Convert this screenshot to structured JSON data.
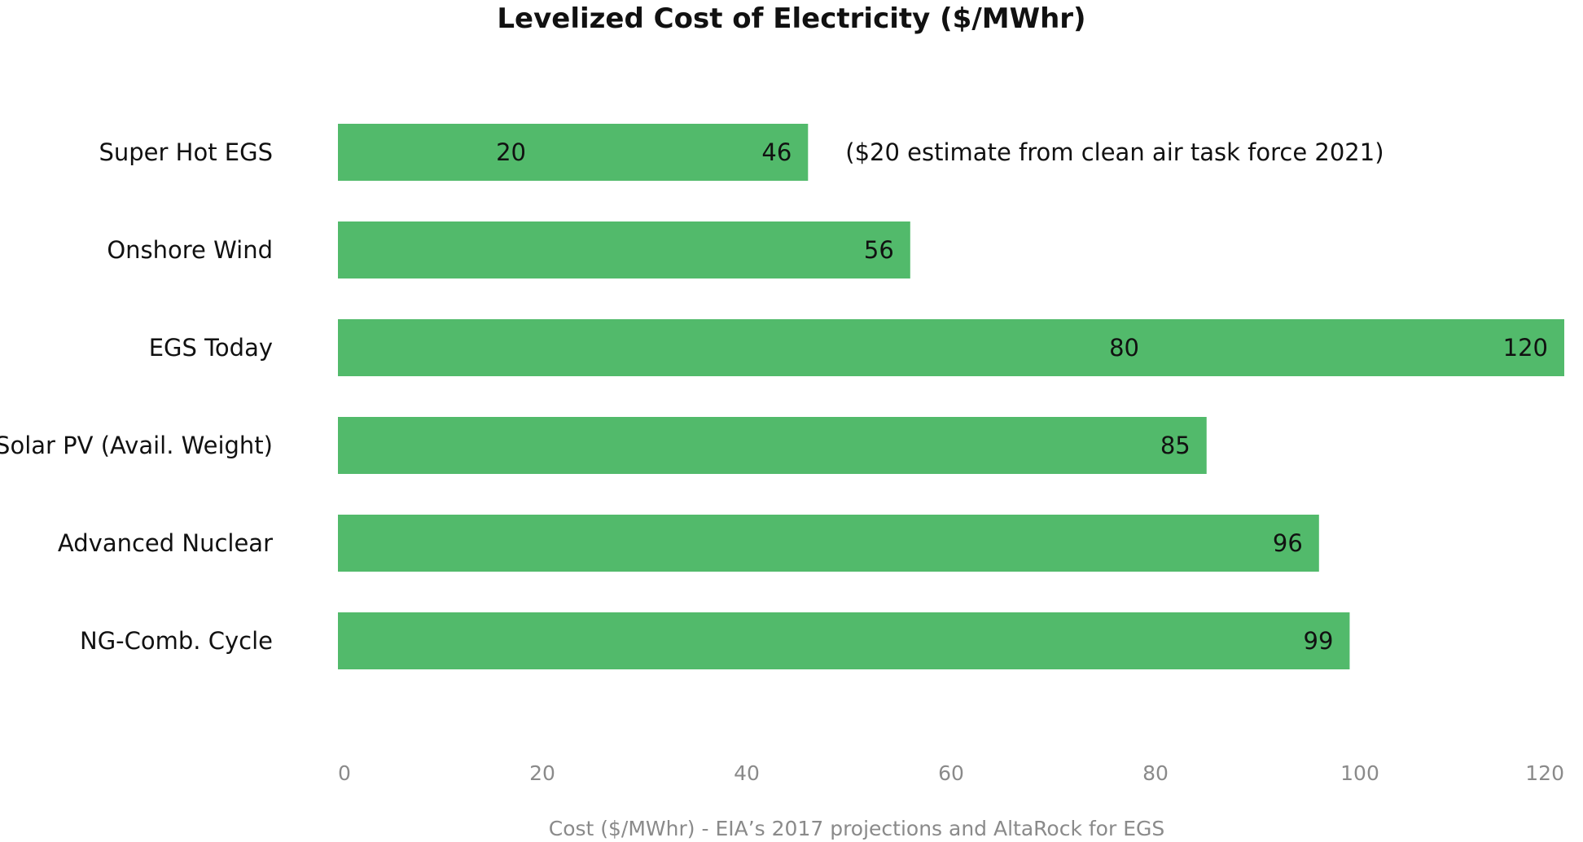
{
  "chart_data": {
    "type": "bar",
    "orientation": "horizontal",
    "title": "Levelized Cost of Electricity ($/MWhr)",
    "xlabel": "Cost ($/MWhr) - EIA’s 2017 projections and AltaRock for EGS",
    "ylabel": "",
    "xlim": [
      0,
      120
    ],
    "xticks": [
      "0",
      "20",
      "40",
      "60",
      "80",
      "100",
      "120"
    ],
    "grid": false,
    "legend": "none",
    "bar_color": "#52BA6B",
    "categories": [
      "Super Hot EGS",
      "Onshore Wind",
      "EGS Today",
      "Solar PV (Avail. Weight)",
      "Advanced Nuclear",
      "NG-Comb. Cycle"
    ],
    "values": [
      46,
      56,
      120,
      85,
      96,
      99
    ],
    "range_low": [
      20,
      null,
      80,
      null,
      null,
      null
    ],
    "labels": [
      [
        "20",
        "46"
      ],
      [
        "56"
      ],
      [
        "80",
        "120"
      ],
      [
        "85"
      ],
      [
        "96"
      ],
      [
        "99"
      ]
    ],
    "annotations": [
      {
        "category": "Super Hot EGS",
        "text": "($20 estimate from clean air task force  2021)"
      }
    ]
  }
}
